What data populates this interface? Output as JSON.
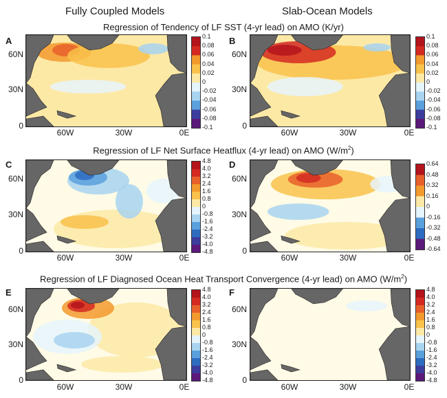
{
  "columns": [
    "Fully Coupled Models",
    "Slab-Ocean Models"
  ],
  "rows": [
    {
      "title": "Regression of Tendency of LF SST (4-yr lead) on AMO (K/yr)",
      "title_html": ""
    },
    {
      "title": "Regression of LF Net Surface Heatflux (4-yr lead) on AMO (W/m",
      "sup": "2",
      "suffix": ")"
    },
    {
      "title": "Regression of LF Diagnosed Ocean Heat Transport Convergence (4-yr lead) on AMO (W/m",
      "sup": "2",
      "suffix": ")"
    }
  ],
  "panels": {
    "A": {
      "label": "A",
      "colorbar": [
        "0.1",
        "0.08",
        "0.06",
        "0.04",
        "0.02",
        "0",
        "-0.02",
        "-0.04",
        "-0.06",
        "-0.08",
        "-0.1"
      ]
    },
    "B": {
      "label": "B",
      "colorbar": [
        "0.1",
        "0.08",
        "0.06",
        "0.04",
        "0.02",
        "0",
        "-0.02",
        "-0.04",
        "-0.06",
        "-0.08",
        "-0.1"
      ]
    },
    "C": {
      "label": "C",
      "colorbar": [
        "4.8",
        "4.0",
        "3.2",
        "2.4",
        "1.6",
        "0.8",
        "0",
        "-0.8",
        "-1.6",
        "-2.4",
        "-3.2",
        "-4.0",
        "-4.8"
      ]
    },
    "D": {
      "label": "D",
      "colorbar": [
        "0.64",
        "0.48",
        "0.32",
        "0.16",
        "0",
        "-0.16",
        "-0.32",
        "-0.48",
        "-0.64"
      ]
    },
    "E": {
      "label": "E",
      "colorbar": [
        "4.8",
        "4.0",
        "3.2",
        "2.4",
        "1.6",
        "0.8",
        "0",
        "-0.8",
        "-1.6",
        "-2.4",
        "-3.2",
        "-4.0",
        "-4.8"
      ]
    },
    "F": {
      "label": "F",
      "colorbar": [
        "4.8",
        "4.0",
        "3.2",
        "2.4",
        "1.6",
        "0.8",
        "0",
        "-0.8",
        "-1.6",
        "-2.4",
        "-3.2",
        "-4.0",
        "-4.8"
      ]
    }
  },
  "lat_labels": [
    "60N",
    "30N",
    "0"
  ],
  "lon_labels": [
    "60W",
    "30W",
    "0E"
  ],
  "colors": {
    "land": "#666666",
    "scale": [
      "#5b1a7a",
      "#3d3d9e",
      "#2e6cc0",
      "#5aa0dd",
      "#a8d4f0",
      "#e6f4fb",
      "#fffbe6",
      "#fde9a6",
      "#f9c24b",
      "#f39a2e",
      "#e8602a",
      "#d42a22",
      "#b4141c"
    ]
  }
}
